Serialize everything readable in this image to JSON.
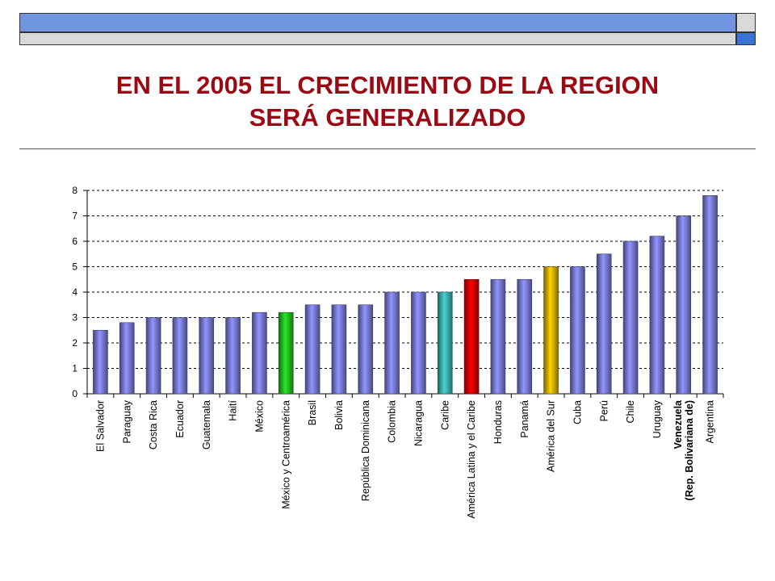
{
  "slide": {
    "title_line1": "EN EL 2005 EL CRECIMIENTO DE LA REGION",
    "title_line2": "SERÁ GENERALIZADO"
  },
  "colors": {
    "default_bar": "#7b7fe0",
    "highlight_green": "#22c422",
    "highlight_teal": "#3cb4b4",
    "highlight_red": "#e00000",
    "highlight_gold": "#e0b400",
    "title": "#9a0a14"
  },
  "chart_data": {
    "type": "bar",
    "ylim": [
      0,
      8
    ],
    "yticks": [
      0,
      1,
      2,
      3,
      4,
      5,
      6,
      7,
      8
    ],
    "grid": "horizontal-dashed",
    "categories": [
      "El Salvador",
      "Paraguay",
      "Costa Rica",
      "Ecuador",
      "Guatemala",
      "Haití",
      "México",
      "México y Centroamérica",
      "Brasil",
      "Bolivia",
      "República Dominicana",
      "Colombia",
      "Nicaragua",
      "Caribe",
      "América Latina y el Caribe",
      "Honduras",
      "Panamá",
      "América del Sur",
      "Cuba",
      "Perú",
      "Chile",
      "Uruguay",
      "Venezuela (Rep. Bolivariana de)",
      "Argentina"
    ],
    "values": [
      2.5,
      2.8,
      3.0,
      3.0,
      3.0,
      3.0,
      3.2,
      3.2,
      3.5,
      3.5,
      3.5,
      4.0,
      4.0,
      4.0,
      4.5,
      4.5,
      4.5,
      5.0,
      5.0,
      5.5,
      6.0,
      6.2,
      7.0,
      7.8
    ],
    "bar_colors": [
      "default",
      "default",
      "default",
      "default",
      "default",
      "default",
      "default",
      "green",
      "default",
      "default",
      "default",
      "default",
      "default",
      "teal",
      "red",
      "default",
      "default",
      "gold",
      "default",
      "default",
      "default",
      "default",
      "default",
      "default"
    ],
    "bold_labels": [
      "Venezuela (Rep. Bolivariana de)"
    ],
    "label_lines": {
      "Venezuela (Rep. Bolivariana de)": [
        "Venezuela",
        "(Rep. Bolivariana de)"
      ]
    }
  }
}
